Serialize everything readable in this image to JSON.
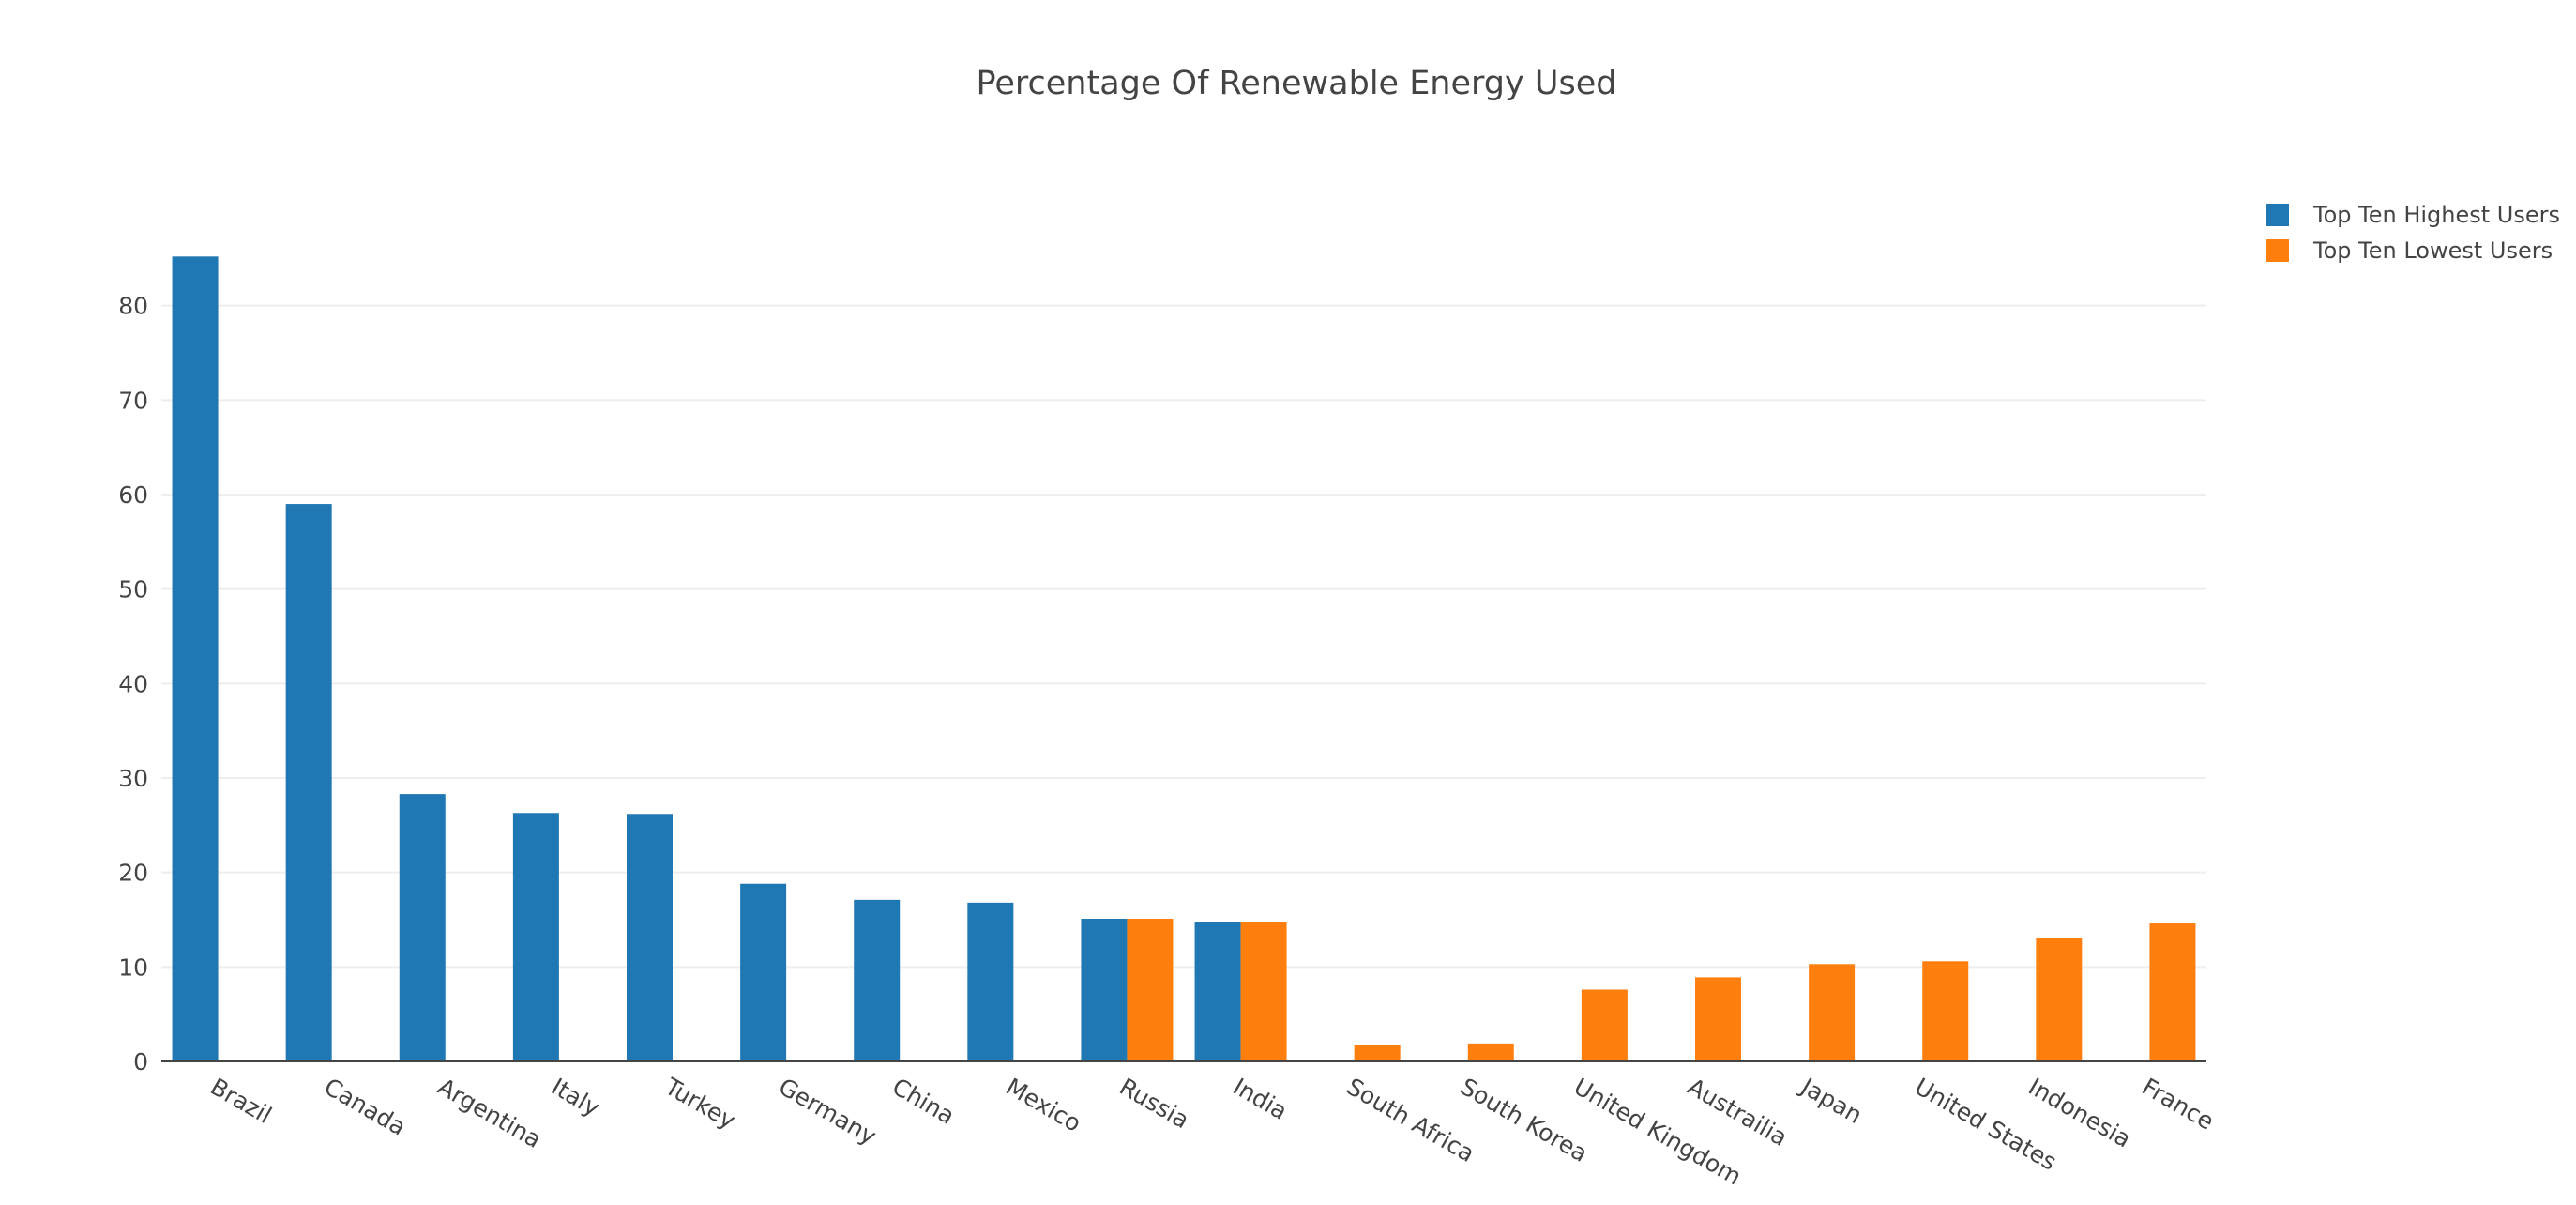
{
  "chart_data": {
    "type": "bar",
    "title": "Percentage Of Renewable Energy Used",
    "xlabel": "",
    "ylabel": "",
    "ylim": [
      0,
      90
    ],
    "y_ticks": [
      0,
      10,
      20,
      30,
      40,
      50,
      60,
      70,
      80
    ],
    "grid": true,
    "legend_position": "top-right",
    "categories": [
      "Brazil",
      "Canada",
      "Argentina",
      "Italy",
      "Turkey",
      "Germany",
      "China",
      "Mexico",
      "Russia",
      "India",
      "South Africa",
      "South Korea",
      "United Kingdom",
      "Austrailia",
      "Japan",
      "United States",
      "Indonesia",
      "France"
    ],
    "series": [
      {
        "name": "Top Ten Highest Users",
        "color": "#1f77b4",
        "values": [
          85.2,
          59.0,
          28.3,
          26.3,
          26.2,
          18.8,
          17.1,
          16.8,
          15.1,
          14.8,
          null,
          null,
          null,
          null,
          null,
          null,
          null,
          null
        ]
      },
      {
        "name": "Top Ten Lowest Users",
        "color": "#ff7f0e",
        "values": [
          null,
          null,
          null,
          null,
          null,
          null,
          null,
          null,
          15.1,
          14.8,
          1.7,
          1.9,
          7.6,
          8.9,
          10.3,
          10.6,
          13.1,
          14.6
        ]
      }
    ]
  }
}
